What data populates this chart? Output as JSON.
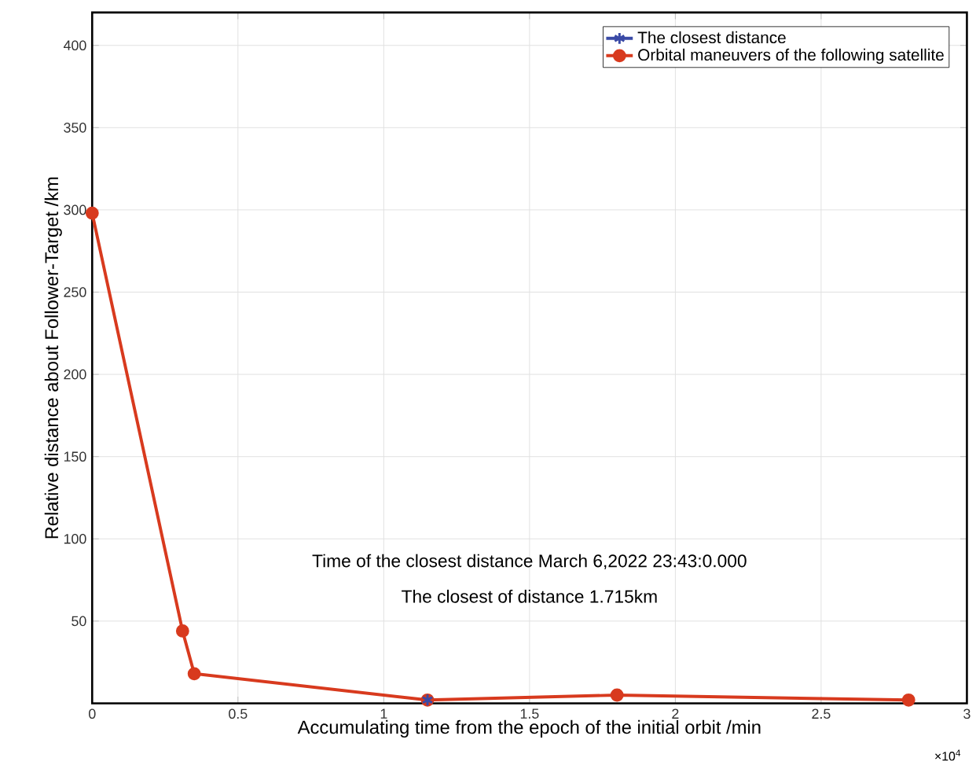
{
  "chart_data": {
    "type": "line",
    "xlabel": "Accumulating time from the epoch of the initial orbit /min",
    "ylabel": "Relative distance about Follower-Target /km",
    "series": [
      {
        "name": "The closest distance",
        "color": "#3a4aa6",
        "marker": "cross",
        "x": [
          1.15
        ],
        "values": [
          2
        ]
      },
      {
        "name": "Orbital maneuvers of the following satellite",
        "color": "#d83a1e",
        "marker": "circle",
        "x": [
          0,
          0.31,
          0.35,
          1.15,
          1.8,
          2.8
        ],
        "values": [
          298,
          44,
          18,
          2,
          5,
          2
        ]
      }
    ],
    "xlim": [
      0,
      3
    ],
    "xticks": [
      0,
      0.5,
      1,
      1.5,
      2,
      2.5,
      3
    ],
    "ylim": [
      0,
      420
    ],
    "yticks": [
      50,
      100,
      150,
      200,
      250,
      300,
      350,
      400
    ],
    "grid": true,
    "legend": "top right",
    "line_style": "solid",
    "annotations": [
      "Time of the closest distance March 6,2022 23:43:0.000",
      "The closest of distance 1.715km",
      "×10$^{4}$"
    ]
  }
}
